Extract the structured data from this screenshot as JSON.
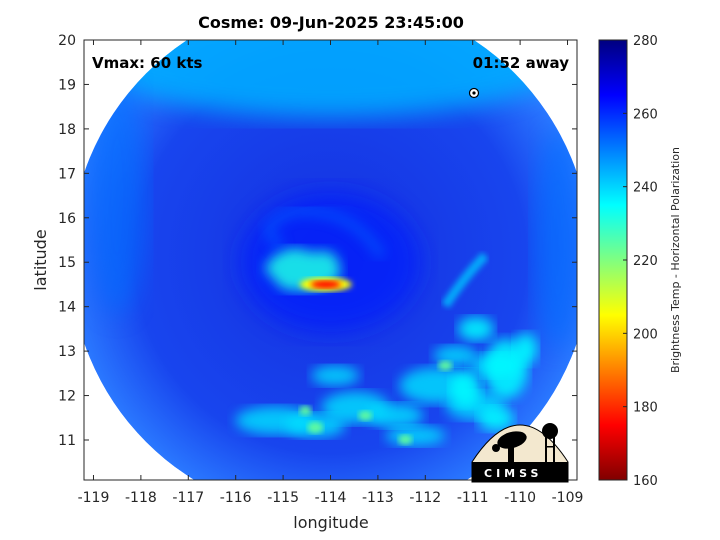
{
  "chart_data": {
    "type": "heatmap",
    "title": "Cosme: 09-Jun-2025 23:45:00",
    "xlabel": "longitude",
    "ylabel": "latitude",
    "xlim": [
      -119.2,
      -108.8
    ],
    "ylim": [
      10.1,
      20
    ],
    "x_ticks": [
      "-119",
      "-118",
      "-117",
      "-116",
      "-115",
      "-114",
      "-113",
      "-112",
      "-111",
      "-110",
      "-109"
    ],
    "x_tick_values": [
      -119,
      -118,
      -117,
      -116,
      -115,
      -114,
      -113,
      -112,
      -111,
      -110,
      -109
    ],
    "y_ticks": [
      "11",
      "12",
      "13",
      "14",
      "15",
      "16",
      "17",
      "18",
      "19",
      "20"
    ],
    "y_tick_values": [
      11,
      12,
      13,
      14,
      15,
      16,
      17,
      18,
      19,
      20
    ],
    "annotations": {
      "vmax": "Vmax: 60 kts",
      "time_away": "01:52 away"
    },
    "swath": {
      "center_lon": -114,
      "center_lat": 15.1,
      "radius_deg": 5.5
    },
    "storm_center": {
      "lon": -114.2,
      "lat": 14.5
    },
    "fields": [
      {
        "name": "background",
        "lon": -114,
        "lat": 15,
        "tb": 262
      },
      {
        "name": "north-warm-band",
        "lon": -114,
        "lat": 19.5,
        "tb": 245
      },
      {
        "name": "west-edge",
        "lon": -118.5,
        "lat": 16.5,
        "tb": 252
      },
      {
        "name": "east-edge",
        "lon": -109.2,
        "lat": 15.5,
        "tb": 252
      },
      {
        "name": "eyewall-arc",
        "lon": -114.6,
        "lat": 14.9,
        "tb": 232
      },
      {
        "name": "eyewall-core",
        "lon": -114.1,
        "lat": 14.5,
        "tb": 175
      },
      {
        "name": "south-rainband",
        "lon": -112,
        "lat": 12,
        "tb": 238
      },
      {
        "name": "southeast-convection",
        "lon": -110.3,
        "lat": 12.6,
        "tb": 235
      }
    ],
    "colorbar": {
      "label": "Brightness Temp - Horizontal Polarization",
      "min": 160,
      "max": 280,
      "ticks": [
        "160",
        "180",
        "200",
        "220",
        "240",
        "260",
        "280"
      ],
      "tick_values": [
        160,
        180,
        200,
        220,
        240,
        260,
        280
      ],
      "colormap": "jet"
    },
    "grid": false,
    "colors": {
      "low": "#800000",
      "mid": "#00ffff",
      "high": "#000080"
    }
  },
  "logo": {
    "text": "CIMSS"
  }
}
